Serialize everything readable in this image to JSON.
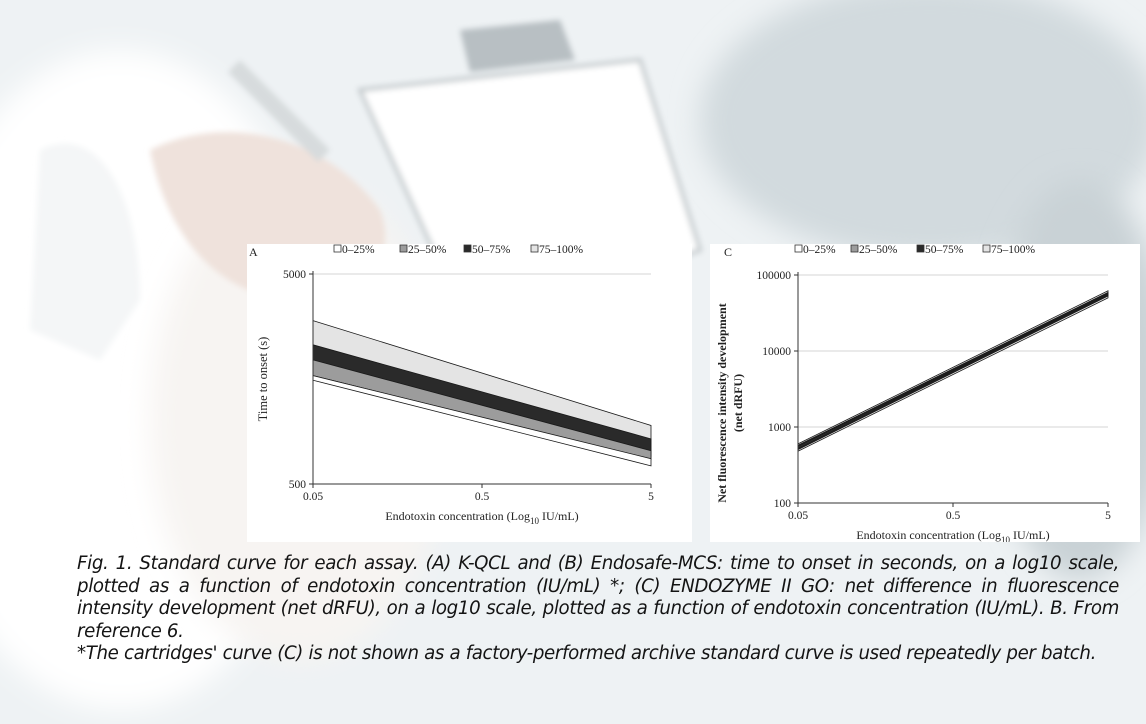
{
  "caption": {
    "main": "Fig. 1. Standard curve for each assay. (A) K-QCL and (B) Endosafe-MCS: time to onset in seconds, on a log10 scale, plotted as a function of endotoxin concentration (IU/mL) *; (C) ENDOZYME II GO: net difference in fluorescence intensity development (net dRFU), on a log10 scale, plotted as a function of endotoxin concentration (IU/mL). B. From reference 6.",
    "footnote": "*The cartridges' curve (C) is not shown as a factory-performed archive standard curve is used repeatedly per batch."
  },
  "colors": {
    "band_0_25": "#ffffff",
    "band_25_50": "#9c9c9c",
    "band_50_75": "#2a2a2a",
    "band_75_100": "#e4e4e4",
    "gridline": "#c8c8c8",
    "axis": "#333333"
  },
  "chart_data": [
    {
      "panel_label": "A",
      "type": "area",
      "xlabel_prefix": "Endotoxin concentration (Log",
      "xlabel_sub": "10",
      "xlabel_suffix": " IU/mL)",
      "ylabel": "Time to onset (s)",
      "x_scale": "log",
      "y_scale": "log",
      "xlim": [
        0.05,
        5
      ],
      "ylim": [
        500,
        5000
      ],
      "x_ticks": [
        "0.05",
        "0.5",
        "5"
      ],
      "y_ticks": [
        "500",
        "5000"
      ],
      "grid": "horizontal",
      "legend_position": "top",
      "legend": [
        "0–25%",
        "25–50%",
        "50–75%",
        "75–100%"
      ],
      "x": [
        0.05,
        5
      ],
      "bands": [
        {
          "name": "75–100%",
          "upper": [
            3000,
            950
          ],
          "lower": [
            1750,
            680
          ]
        },
        {
          "name": "50–75%",
          "upper": [
            2300,
            820
          ],
          "lower": [
            1780,
            670
          ]
        },
        {
          "name": "25–50%",
          "upper": [
            1950,
            720
          ],
          "lower": [
            1640,
            655
          ]
        },
        {
          "name": "0–25%",
          "upper": [
            1640,
            660
          ],
          "lower": [
            1560,
            610
          ]
        }
      ]
    },
    {
      "panel_label": "C",
      "type": "area",
      "xlabel_prefix": "Endotoxin concentration (Log",
      "xlabel_sub": "10",
      "xlabel_suffix": " IU/mL)",
      "ylabel_line1": "Net fluorescence intensity development",
      "ylabel_line2": "(net dRFU)",
      "x_scale": "log",
      "y_scale": "log",
      "xlim": [
        0.05,
        5
      ],
      "ylim": [
        100,
        100000
      ],
      "x_ticks": [
        "0.05",
        "0.5",
        "5"
      ],
      "y_ticks": [
        "100",
        "1000",
        "10000",
        "100000"
      ],
      "grid": "horizontal",
      "legend_position": "top",
      "legend": [
        "0–25%",
        "25–50%",
        "50–75%",
        "75–100%"
      ],
      "x": [
        0.05,
        5
      ],
      "bands": [
        {
          "name": "75–100%",
          "upper": [
            600,
            62000
          ],
          "lower": [
            480,
            50000
          ]
        },
        {
          "name": "50–75%",
          "upper": [
            575,
            59000
          ],
          "lower": [
            505,
            53000
          ]
        },
        {
          "name": "25–50%",
          "upper": [
            560,
            57500
          ],
          "lower": [
            520,
            54500
          ]
        },
        {
          "name": "0–25%",
          "upper": [
            548,
            56500
          ],
          "lower": [
            532,
            55500
          ]
        }
      ]
    }
  ]
}
